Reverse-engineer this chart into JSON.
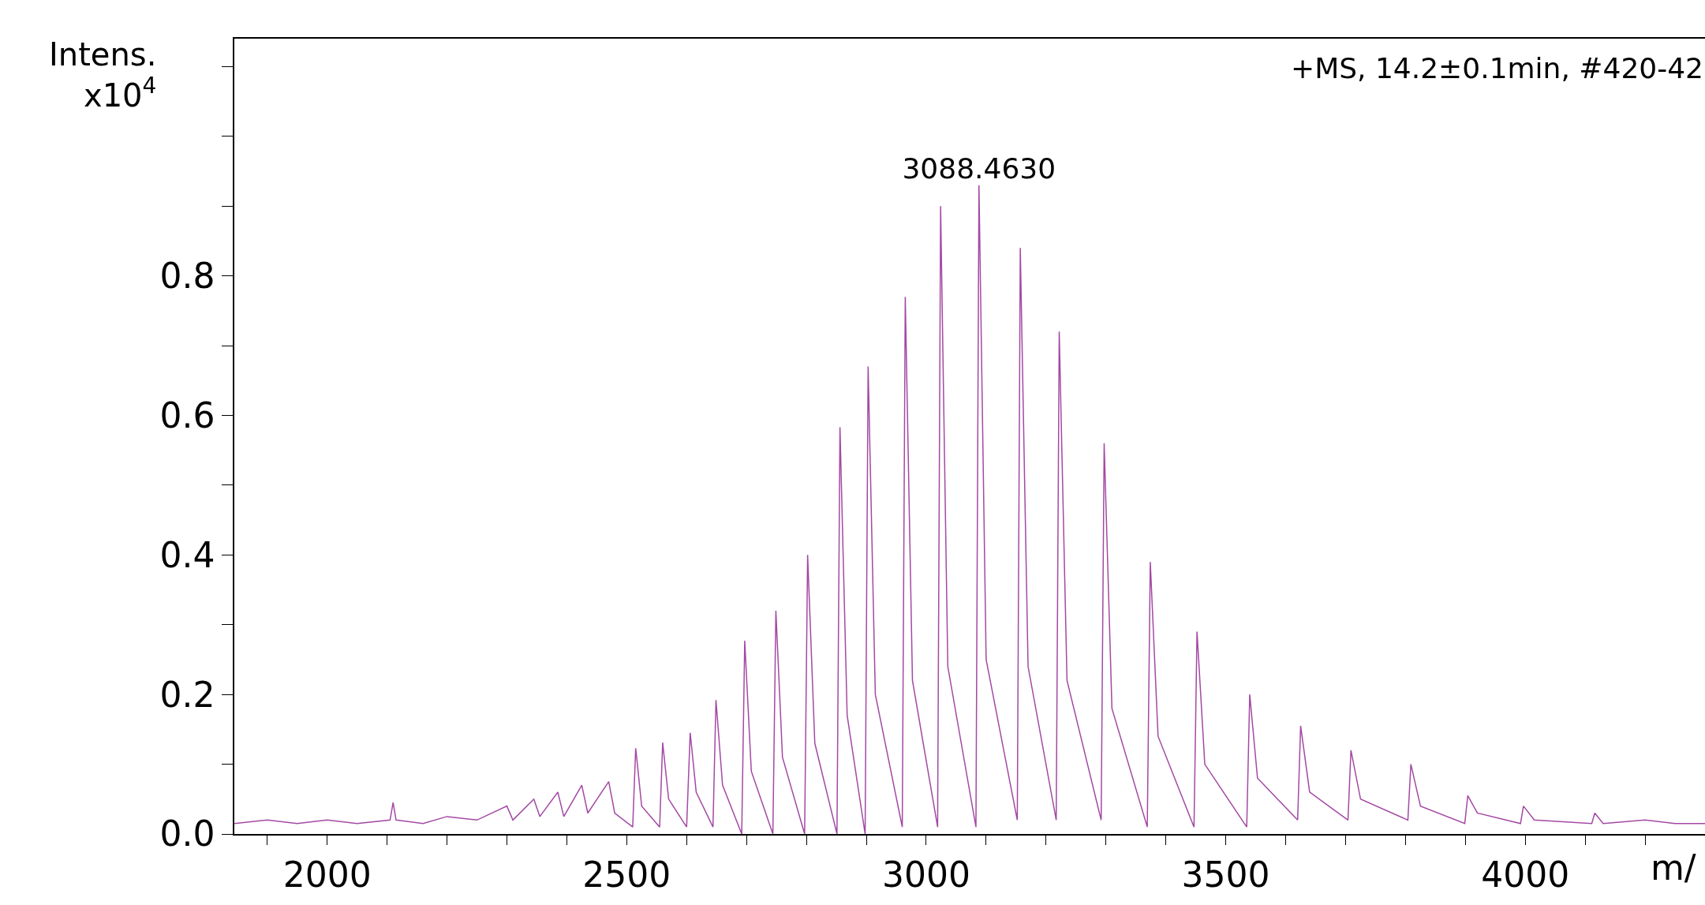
{
  "chart_data": {
    "type": "line",
    "title": "+MS, 14.2±0.1min, #420-42",
    "xlabel": "m/",
    "ylabel": "Intens.\nx10$^{4}$",
    "annotations": [
      {
        "text": "3088.4630",
        "x": 3088,
        "y": 0.93
      }
    ],
    "x": [
      1845,
      1900,
      1950,
      2000,
      2050,
      2105,
      2110,
      2115,
      2160,
      2200,
      2250,
      2300,
      2310,
      2345,
      2355,
      2385,
      2395,
      2425,
      2435,
      2470,
      2480,
      2510,
      2515,
      2525,
      2555,
      2560,
      2570,
      2600,
      2606,
      2616,
      2644,
      2649,
      2660,
      2692,
      2697,
      2708,
      2744,
      2749,
      2760,
      2797,
      2802,
      2814,
      2851,
      2856,
      2868,
      2898,
      2903,
      2915,
      2960,
      2965,
      2977,
      3019,
      3024,
      3036,
      3083,
      3088,
      3100,
      3152,
      3157,
      3170,
      3217,
      3222,
      3235,
      3292,
      3297,
      3310,
      3369,
      3374,
      3387,
      3447,
      3452,
      3465,
      3535,
      3540,
      3553,
      3620,
      3625,
      3640,
      3704,
      3709,
      3725,
      3804,
      3809,
      3825,
      3899,
      3904,
      3920,
      3992,
      3997,
      4015,
      4111,
      4116,
      4130,
      4200,
      4250,
      4300
    ],
    "series": [
      {
        "color": "#a349a4",
        "values": [
          0.015,
          0.02,
          0.015,
          0.02,
          0.015,
          0.02,
          0.045,
          0.02,
          0.015,
          0.025,
          0.02,
          0.04,
          0.02,
          0.05,
          0.025,
          0.06,
          0.025,
          0.07,
          0.03,
          0.075,
          0.03,
          0.01,
          0.123,
          0.04,
          0.01,
          0.131,
          0.05,
          0.01,
          0.145,
          0.06,
          0.01,
          0.192,
          0.07,
          0.0,
          0.277,
          0.09,
          0.0,
          0.32,
          0.11,
          0.0,
          0.4,
          0.13,
          0.0,
          0.583,
          0.17,
          0.0,
          0.67,
          0.2,
          0.01,
          0.77,
          0.22,
          0.01,
          0.9,
          0.24,
          0.01,
          0.93,
          0.25,
          0.02,
          0.84,
          0.24,
          0.02,
          0.72,
          0.22,
          0.02,
          0.56,
          0.18,
          0.01,
          0.39,
          0.14,
          0.01,
          0.29,
          0.1,
          0.01,
          0.2,
          0.08,
          0.02,
          0.155,
          0.06,
          0.02,
          0.12,
          0.05,
          0.02,
          0.1,
          0.04,
          0.015,
          0.055,
          0.03,
          0.015,
          0.04,
          0.02,
          0.015,
          0.03,
          0.015,
          0.02,
          0.015,
          0.015
        ]
      }
    ],
    "xlim": [
      1845,
      4300
    ],
    "xticks": [
      {
        "value": 1900,
        "label": null
      },
      2000,
      {
        "value": 2100,
        "label": null
      },
      {
        "value": 2200,
        "label": null
      },
      {
        "value": 2300,
        "label": null
      },
      {
        "value": 2400,
        "label": null
      },
      2500,
      {
        "value": 2600,
        "label": null
      },
      {
        "value": 2700,
        "label": null
      },
      {
        "value": 2800,
        "label": null
      },
      {
        "value": 2900,
        "label": null
      },
      3000,
      {
        "value": 3100,
        "label": null
      },
      {
        "value": 3200,
        "label": null
      },
      {
        "value": 3300,
        "label": null
      },
      {
        "value": 3400,
        "label": null
      },
      3500,
      {
        "value": 3600,
        "label": null
      },
      {
        "value": 3700,
        "label": null
      },
      {
        "value": 3800,
        "label": null
      },
      {
        "value": 3900,
        "label": null
      },
      4000,
      {
        "value": 4100,
        "label": null
      },
      {
        "value": 4200,
        "label": null
      }
    ],
    "ylim": [
      0,
      1.14
    ],
    "yticks": [
      {
        "value": 0,
        "label": "0.0"
      },
      {
        "value": 0.1,
        "label": null
      },
      0.2,
      {
        "value": 0.3,
        "label": null
      },
      0.4,
      {
        "value": 0.5,
        "label": null
      },
      0.6,
      {
        "value": 0.7,
        "label": null
      },
      0.8,
      {
        "value": 0.9,
        "label": null
      },
      {
        "value": 1.0,
        "label": null
      },
      {
        "value": 1.1,
        "label": null
      }
    ],
    "marker": "none",
    "line_style": "solid"
  }
}
